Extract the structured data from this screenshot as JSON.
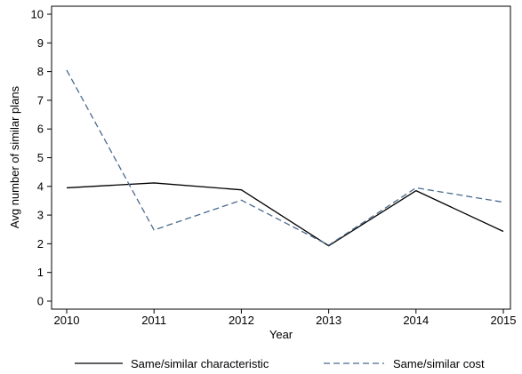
{
  "chart_data": {
    "type": "line",
    "title": "",
    "xlabel": "Year",
    "ylabel": "Avg number of similar plans",
    "x": [
      2010,
      2011,
      2012,
      2013,
      2014,
      2015
    ],
    "xlim": [
      2010,
      2015
    ],
    "ylim": [
      0,
      10
    ],
    "yticks": [
      0,
      1,
      2,
      3,
      4,
      5,
      6,
      7,
      8,
      9,
      10
    ],
    "grid": false,
    "legend_position": "bottom",
    "series": [
      {
        "name": "Same/similar characteristic",
        "values": [
          3.95,
          4.12,
          3.88,
          1.93,
          3.85,
          2.43
        ],
        "color": "#000000",
        "style": "solid"
      },
      {
        "name": "Same/similar cost",
        "values": [
          8.05,
          2.48,
          3.52,
          1.95,
          3.95,
          3.45
        ],
        "color": "#4a6a8c",
        "style": "dashed"
      }
    ]
  }
}
